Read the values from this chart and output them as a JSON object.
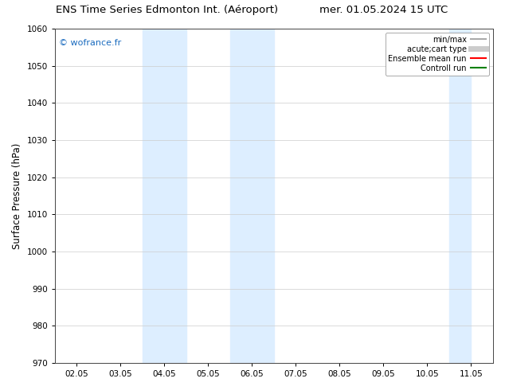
{
  "title_left": "ENS Time Series Edmonton Int. (Aéroport)",
  "title_right": "mer. 01.05.2024 15 UTC",
  "ylabel": "Surface Pressure (hPa)",
  "ylim": [
    970,
    1060
  ],
  "yticks": [
    970,
    980,
    990,
    1000,
    1010,
    1020,
    1030,
    1040,
    1050,
    1060
  ],
  "xtick_labels": [
    "02.05",
    "03.05",
    "04.05",
    "05.05",
    "06.05",
    "07.05",
    "08.05",
    "09.05",
    "10.05",
    "11.05"
  ],
  "n_ticks": 10,
  "xlim": [
    0,
    9
  ],
  "shaded_bands": [
    {
      "xmin": 2.0,
      "xmax": 3.0,
      "color": "#ddeeff"
    },
    {
      "xmin": 4.0,
      "xmax": 5.0,
      "color": "#ddeeff"
    },
    {
      "xmin": 9.0,
      "xmax": 9.5,
      "color": "#ddeeff"
    }
  ],
  "watermark_text": "© wofrance.fr",
  "watermark_color": "#1a6bbf",
  "bg_color": "#ffffff",
  "plot_bg_color": "#ffffff",
  "legend_items": [
    {
      "label": "min/max",
      "color": "#aaaaaa",
      "lw": 1.5,
      "style": "solid"
    },
    {
      "label": "acute;cart type",
      "color": "#cccccc",
      "lw": 5,
      "style": "solid"
    },
    {
      "label": "Ensemble mean run",
      "color": "#ff0000",
      "lw": 1.5,
      "style": "solid"
    },
    {
      "label": "Controll run",
      "color": "#008000",
      "lw": 1.5,
      "style": "solid"
    }
  ],
  "grid_color": "#cccccc",
  "title_fontsize": 9.5,
  "tick_fontsize": 7.5,
  "ylabel_fontsize": 8.5
}
